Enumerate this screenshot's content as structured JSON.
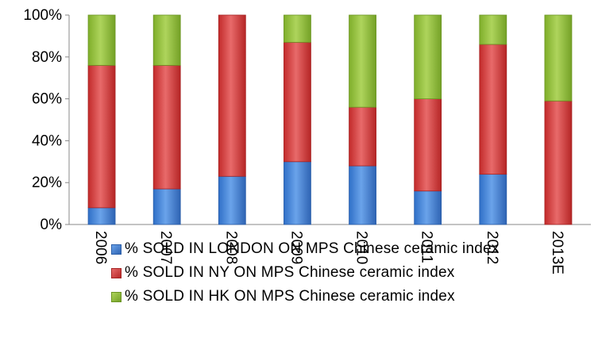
{
  "chart_data": {
    "type": "bar",
    "stacked": true,
    "categories": [
      "2006",
      "2007",
      "2008",
      "2009",
      "2010",
      "2011",
      "2012",
      "2013E"
    ],
    "series": [
      {
        "name": "% SOLD IN LONDON ON MPS Chinese ceramic index",
        "color": "#4a86d6",
        "values": [
          8,
          17,
          23,
          30,
          28,
          16,
          24,
          0
        ]
      },
      {
        "name": "% SOLD IN NY ON MPS Chinese ceramic index",
        "color": "#d94040",
        "values": [
          68,
          59,
          77,
          57,
          28,
          44,
          62,
          59
        ]
      },
      {
        "name": "% SOLD IN HK ON MPS Chinese ceramic index",
        "color": "#93c33c",
        "values": [
          24,
          24,
          0,
          13,
          44,
          40,
          14,
          41
        ]
      }
    ],
    "yticks": [
      "0%",
      "20%",
      "40%",
      "60%",
      "80%",
      "100%"
    ],
    "ylim": [
      0,
      100
    ],
    "grid": false,
    "legend_position": "bottom"
  }
}
